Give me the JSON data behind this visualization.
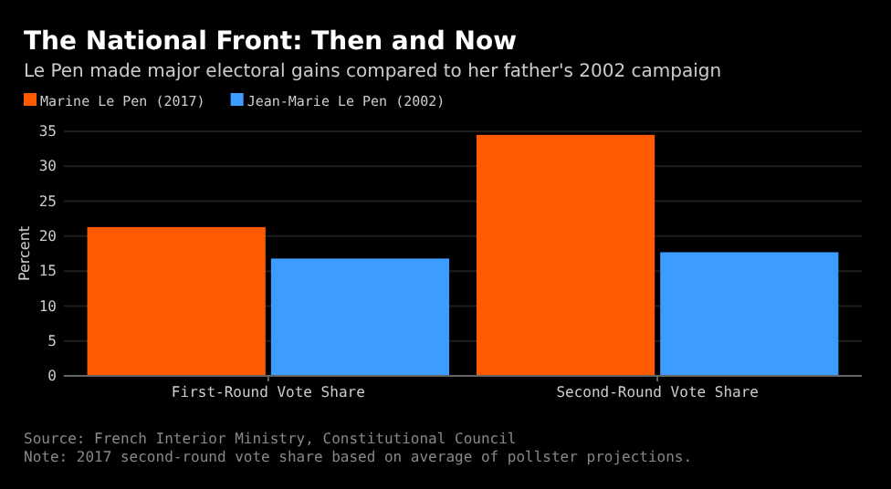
{
  "chart_data": {
    "type": "bar",
    "title": "The National Front: Then and Now",
    "subtitle": "Le Pen made major electoral gains compared to her father's 2002 campaign",
    "categories": [
      "First-Round Vote Share",
      "Second-Round Vote Share"
    ],
    "series": [
      {
        "name": "Marine Le Pen (2017)",
        "color": "#ff5a00",
        "values": [
          21.3,
          34.5
        ]
      },
      {
        "name": "Jean-Marie Le Pen (2002)",
        "color": "#3d9cff",
        "values": [
          16.8,
          17.7
        ]
      }
    ],
    "ylabel": "Percent",
    "ylim": [
      0,
      35
    ],
    "yticks": [
      0,
      5,
      10,
      15,
      20,
      25,
      30,
      35
    ],
    "grid": "y",
    "legend": "top left",
    "annotations": [
      "Source: French Interior Ministry, Constitutional Council",
      "Note: 2017 second-round vote share based on average of pollster projections."
    ]
  }
}
